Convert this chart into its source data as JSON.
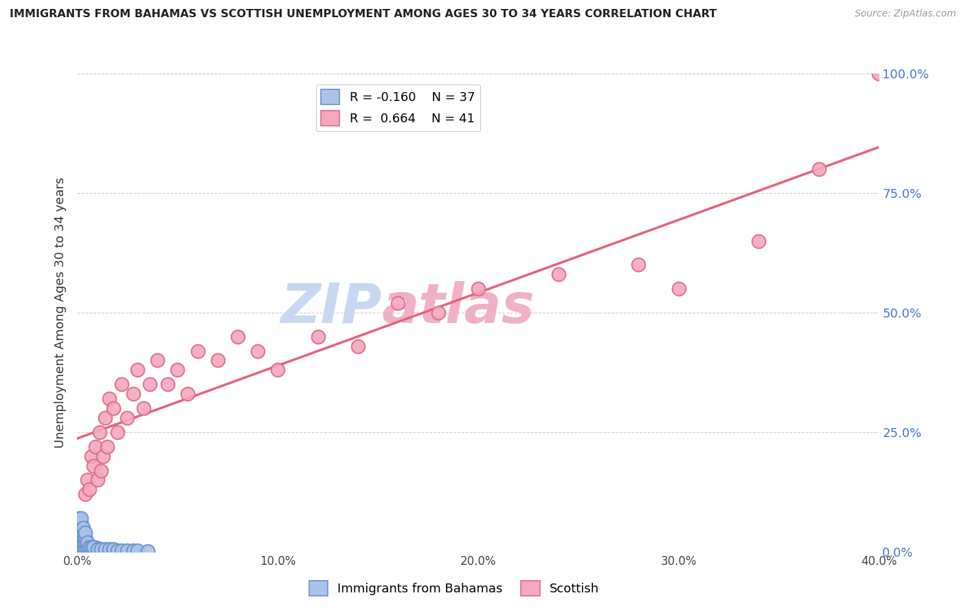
{
  "title": "IMMIGRANTS FROM BAHAMAS VS SCOTTISH UNEMPLOYMENT AMONG AGES 30 TO 34 YEARS CORRELATION CHART",
  "source": "Source: ZipAtlas.com",
  "ylabel": "Unemployment Among Ages 30 to 34 years",
  "xlim": [
    0.0,
    0.4
  ],
  "ylim": [
    0.0,
    1.0
  ],
  "xticks": [
    0.0,
    0.1,
    0.2,
    0.3,
    0.4
  ],
  "xtick_labels": [
    "0.0%",
    "10.0%",
    "20.0%",
    "30.0%",
    "40.0%"
  ],
  "yticks": [
    0.0,
    0.25,
    0.5,
    0.75,
    1.0
  ],
  "ytick_labels": [
    "0.0%",
    "25.0%",
    "50.0%",
    "75.0%",
    "100.0%"
  ],
  "legend_r1": "R = -0.160",
  "legend_n1": "N = 37",
  "legend_r2": "R =  0.664",
  "legend_n2": "N = 41",
  "color_blue": "#aac4e8",
  "color_pink": "#f4a8c0",
  "color_blue_edge": "#6890cc",
  "color_pink_edge": "#e06888",
  "color_line_blue": "#6890cc",
  "color_line_pink": "#e8607a",
  "watermark": "ZIPatlas",
  "watermark_color_zip": "#c8d8f0",
  "watermark_color_atlas": "#e8a0b8",
  "background_color": "#ffffff",
  "grid_color": "#cccccc",
  "bahamas_x": [
    0.001,
    0.001,
    0.001,
    0.001,
    0.001,
    0.002,
    0.002,
    0.002,
    0.002,
    0.002,
    0.002,
    0.002,
    0.003,
    0.003,
    0.003,
    0.003,
    0.003,
    0.004,
    0.004,
    0.004,
    0.004,
    0.005,
    0.005,
    0.006,
    0.007,
    0.008,
    0.01,
    0.012,
    0.014,
    0.016,
    0.018,
    0.02,
    0.022,
    0.025,
    0.028,
    0.03,
    0.035
  ],
  "bahamas_y": [
    0.03,
    0.04,
    0.05,
    0.06,
    0.07,
    0.01,
    0.02,
    0.03,
    0.04,
    0.05,
    0.06,
    0.07,
    0.01,
    0.02,
    0.03,
    0.04,
    0.05,
    0.01,
    0.02,
    0.03,
    0.04,
    0.01,
    0.02,
    0.01,
    0.01,
    0.01,
    0.005,
    0.005,
    0.005,
    0.005,
    0.005,
    0.003,
    0.003,
    0.002,
    0.002,
    0.002,
    0.001
  ],
  "scottish_x": [
    0.004,
    0.005,
    0.006,
    0.007,
    0.008,
    0.009,
    0.01,
    0.011,
    0.012,
    0.013,
    0.014,
    0.015,
    0.016,
    0.018,
    0.02,
    0.022,
    0.025,
    0.028,
    0.03,
    0.033,
    0.036,
    0.04,
    0.045,
    0.05,
    0.055,
    0.06,
    0.07,
    0.08,
    0.09,
    0.1,
    0.12,
    0.14,
    0.16,
    0.18,
    0.2,
    0.24,
    0.28,
    0.3,
    0.34,
    0.37,
    0.4
  ],
  "scottish_y": [
    0.12,
    0.15,
    0.13,
    0.2,
    0.18,
    0.22,
    0.15,
    0.25,
    0.17,
    0.2,
    0.28,
    0.22,
    0.32,
    0.3,
    0.25,
    0.35,
    0.28,
    0.33,
    0.38,
    0.3,
    0.35,
    0.4,
    0.35,
    0.38,
    0.33,
    0.42,
    0.4,
    0.45,
    0.42,
    0.38,
    0.45,
    0.43,
    0.52,
    0.5,
    0.55,
    0.58,
    0.6,
    0.55,
    0.65,
    0.8,
    1.0
  ]
}
